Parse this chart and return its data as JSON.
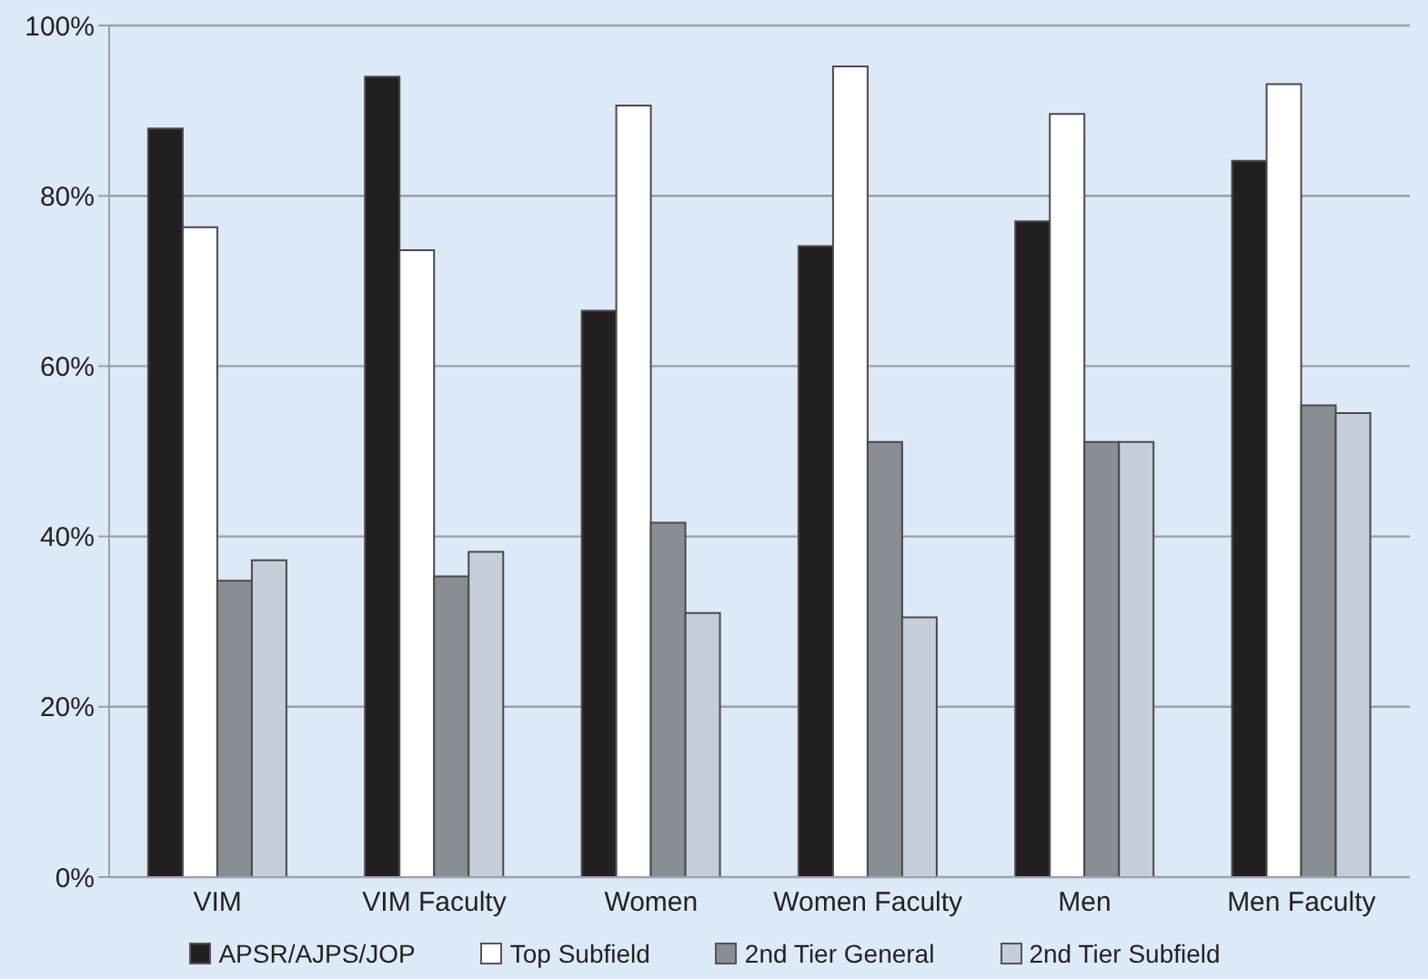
{
  "chart_data": {
    "type": "bar",
    "categories": [
      "VIM",
      "VIM Faculty",
      "Women",
      "Women Faculty",
      "Men",
      "Men Faculty"
    ],
    "series": [
      {
        "name": "APSR/AJPS/JOP",
        "color": "#231f20",
        "values": [
          87.9,
          94,
          66.5,
          74.1,
          77,
          84.1
        ]
      },
      {
        "name": "Top Subfield",
        "color": "#ffffff",
        "values": [
          76.3,
          73.6,
          90.6,
          95.2,
          89.6,
          93.1
        ]
      },
      {
        "name": "2nd Tier General",
        "color": "#898d94",
        "values": [
          34.8,
          35.3,
          41.6,
          51.1,
          51.1,
          55.4
        ]
      },
      {
        "name": "2nd Tier Subfield",
        "color": "#c3ced9",
        "values": [
          37.2,
          38.2,
          31,
          30.5,
          51.1,
          54.5
        ]
      }
    ],
    "ylim": [
      0,
      100
    ],
    "yticks": [
      {
        "value": 0,
        "label": "0%"
      },
      {
        "value": 20,
        "label": "20%"
      },
      {
        "value": 40,
        "label": "40%"
      },
      {
        "value": 60,
        "label": "60%"
      },
      {
        "value": 80,
        "label": "80%"
      },
      {
        "value": 100,
        "label": "100%"
      }
    ],
    "grid": "y",
    "legend": "bottom"
  }
}
